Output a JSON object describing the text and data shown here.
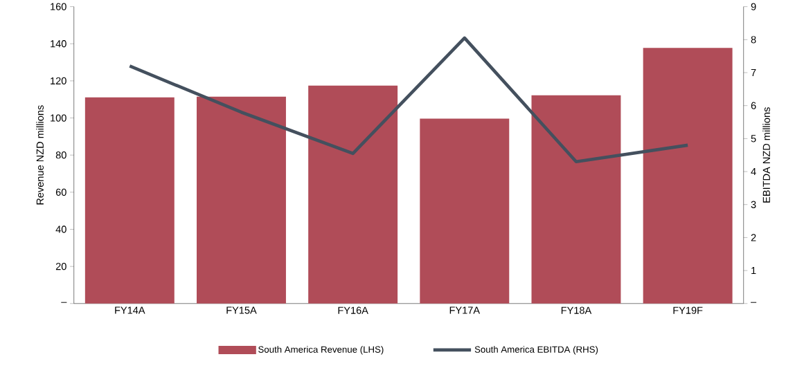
{
  "chart_data": {
    "type": "bar",
    "categories": [
      "FY14A",
      "FY15A",
      "FY16A",
      "FY17A",
      "FY18A",
      "FY19F"
    ],
    "series": [
      {
        "name": "South America Revenue (LHS)",
        "color": "#b04c58",
        "values": [
          111.1,
          111.5,
          117.4,
          99.6,
          112.2,
          137.8
        ]
      },
      {
        "name": "South America EBITDA (RHS)",
        "type": "line",
        "axis": "y2",
        "color": "#44505e",
        "values": [
          7.2,
          5.8,
          4.55,
          8.05,
          4.3,
          4.8
        ]
      }
    ],
    "ylabel": "Revenue  NZD millions",
    "y2label": "EBITDA  NZD millions",
    "ylim": [
      0,
      160
    ],
    "yticks": [
      {
        "value": 0,
        "label": "–"
      },
      20,
      40,
      60,
      80,
      100,
      120,
      140,
      160
    ],
    "y2lim": [
      0,
      9
    ],
    "y2ticks": [
      {
        "value": 0,
        "label": "–"
      },
      1,
      2,
      3,
      4,
      5,
      6,
      7,
      8,
      9
    ],
    "legend": "bottom"
  }
}
